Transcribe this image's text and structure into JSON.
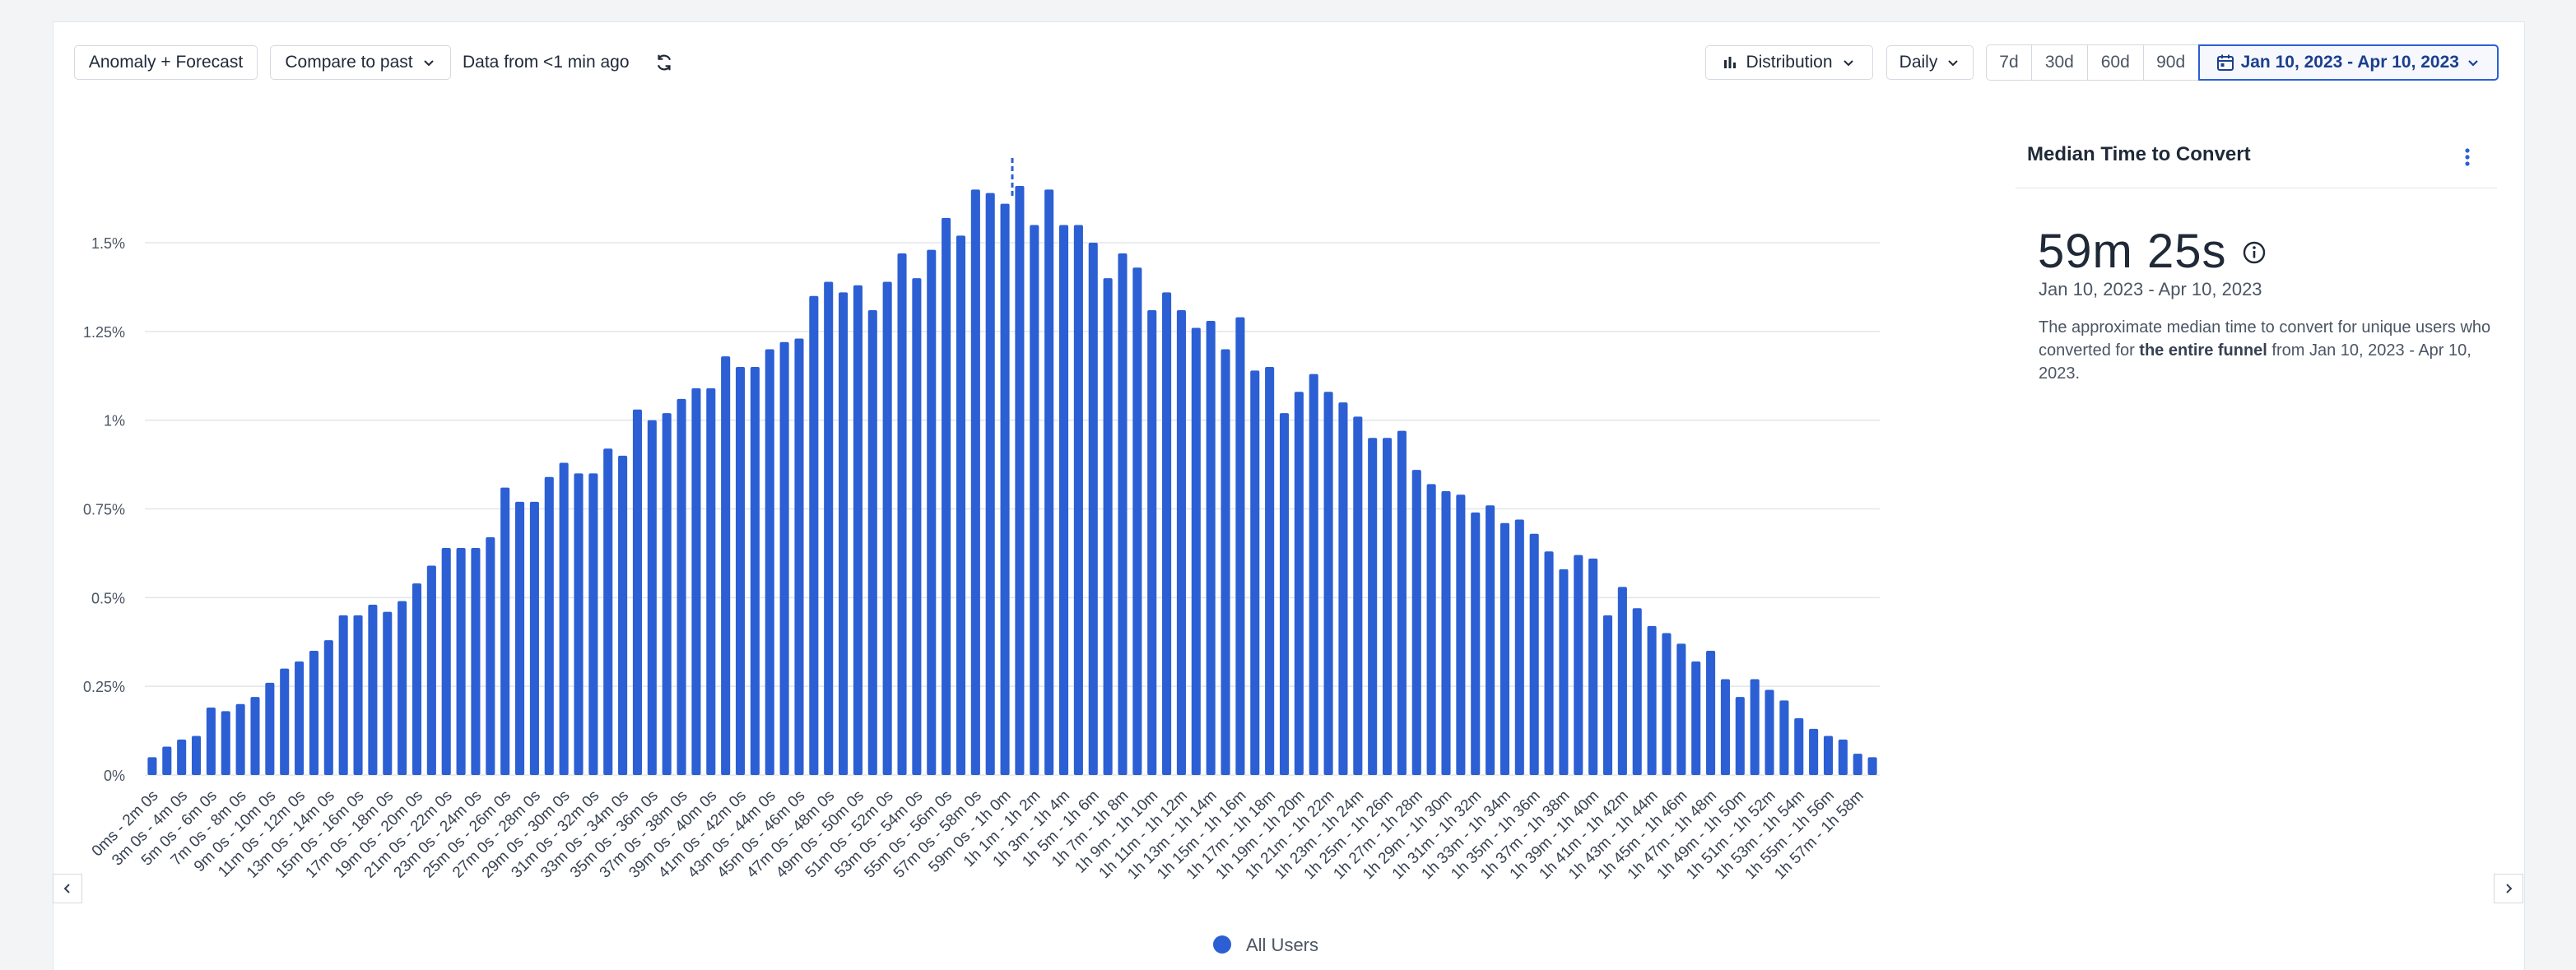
{
  "toolbar": {
    "anomaly_label": "Anomaly + Forecast",
    "compare_label": "Compare to past",
    "freshness_text": "Data from <1 min ago",
    "refresh_icon": "refresh-icon",
    "distribution_label": "Distribution",
    "interval_label": "Daily",
    "range_presets": [
      "7d",
      "30d",
      "60d",
      "90d"
    ],
    "date_range": "Jan 10, 2023 - Apr 10, 2023",
    "accent_color": "#2c5fd4"
  },
  "sidebar": {
    "title": "Median Time to Convert",
    "value": "59m 25s",
    "range": "Jan 10, 2023 - Apr 10, 2023",
    "desc_pre": "The approximate median time to convert for unique users who converted for ",
    "desc_bold": "the entire funnel",
    "desc_post": " from Jan 10, 2023 - Apr 10, 2023."
  },
  "legend": {
    "series_label": "All Users"
  },
  "chart_data": {
    "type": "bar",
    "bar_color": "#2c5fd4",
    "grid": true,
    "legend_position": "bottom-center",
    "y_ticks": [
      "0%",
      "0.25%",
      "0.5%",
      "0.75%",
      "1%",
      "1.25%",
      "1.5%"
    ],
    "ylim": [
      0,
      1.75
    ],
    "median_marker_category": "59m 0s - 1h 0m",
    "x_tick_labels": [
      "0ms - 2m 0s",
      "3m 0s - 4m 0s",
      "5m 0s - 6m 0s",
      "7m 0s - 8m 0s",
      "9m 0s - 10m 0s",
      "11m 0s - 12m 0s",
      "13m 0s - 14m 0s",
      "15m 0s - 16m 0s",
      "17m 0s - 18m 0s",
      "19m 0s - 20m 0s",
      "21m 0s - 22m 0s",
      "23m 0s - 24m 0s",
      "25m 0s - 26m 0s",
      "27m 0s - 28m 0s",
      "29m 0s - 30m 0s",
      "31m 0s - 32m 0s",
      "33m 0s - 34m 0s",
      "35m 0s - 36m 0s",
      "37m 0s - 38m 0s",
      "39m 0s - 40m 0s",
      "41m 0s - 42m 0s",
      "43m 0s - 44m 0s",
      "45m 0s - 46m 0s",
      "47m 0s - 48m 0s",
      "49m 0s - 50m 0s",
      "51m 0s - 52m 0s",
      "53m 0s - 54m 0s",
      "55m 0s - 56m 0s",
      "57m 0s - 58m 0s",
      "59m 0s - 1h 0m",
      "1h 1m - 1h 2m",
      "1h 3m - 1h 4m",
      "1h 5m - 1h 6m",
      "1h 7m - 1h 8m",
      "1h 9m - 1h 10m",
      "1h 11m - 1h 12m",
      "1h 13m - 1h 14m",
      "1h 15m - 1h 16m",
      "1h 17m - 1h 18m",
      "1h 19m - 1h 20m",
      "1h 21m - 1h 22m",
      "1h 23m - 1h 24m",
      "1h 25m - 1h 26m",
      "1h 27m - 1h 28m",
      "1h 29m - 1h 30m",
      "1h 31m - 1h 32m",
      "1h 33m - 1h 34m",
      "1h 35m - 1h 36m",
      "1h 37m - 1h 38m",
      "1h 39m - 1h 40m",
      "1h 41m - 1h 42m",
      "1h 43m - 1h 44m",
      "1h 45m - 1h 46m",
      "1h 47m - 1h 48m",
      "1h 49m - 1h 50m",
      "1h 51m - 1h 52m",
      "1h 53m - 1h 54m",
      "1h 55m - 1h 56m",
      "1h 57m - 1h 58m"
    ],
    "values": [
      0.05,
      0.08,
      0.1,
      0.11,
      0.19,
      0.18,
      0.2,
      0.22,
      0.26,
      0.3,
      0.32,
      0.35,
      0.38,
      0.45,
      0.45,
      0.48,
      0.46,
      0.49,
      0.54,
      0.59,
      0.64,
      0.64,
      0.64,
      0.67,
      0.81,
      0.77,
      0.77,
      0.84,
      0.88,
      0.85,
      0.85,
      0.92,
      0.9,
      1.03,
      1.0,
      1.02,
      1.06,
      1.09,
      1.09,
      1.18,
      1.15,
      1.15,
      1.2,
      1.22,
      1.23,
      1.35,
      1.39,
      1.36,
      1.38,
      1.31,
      1.39,
      1.47,
      1.4,
      1.48,
      1.57,
      1.52,
      1.65,
      1.64,
      1.61,
      1.66,
      1.55,
      1.65,
      1.55,
      1.55,
      1.5,
      1.4,
      1.47,
      1.43,
      1.31,
      1.36,
      1.31,
      1.26,
      1.28,
      1.2,
      1.29,
      1.14,
      1.15,
      1.02,
      1.08,
      1.13,
      1.08,
      1.05,
      1.01,
      0.95,
      0.95,
      0.97,
      0.86,
      0.82,
      0.8,
      0.79,
      0.74,
      0.76,
      0.71,
      0.72,
      0.68,
      0.63,
      0.58,
      0.62,
      0.61,
      0.45,
      0.53,
      0.47,
      0.42,
      0.4,
      0.37,
      0.32,
      0.35,
      0.27,
      0.22,
      0.27,
      0.24,
      0.21,
      0.16,
      0.13,
      0.11,
      0.1,
      0.06,
      0.05
    ]
  }
}
